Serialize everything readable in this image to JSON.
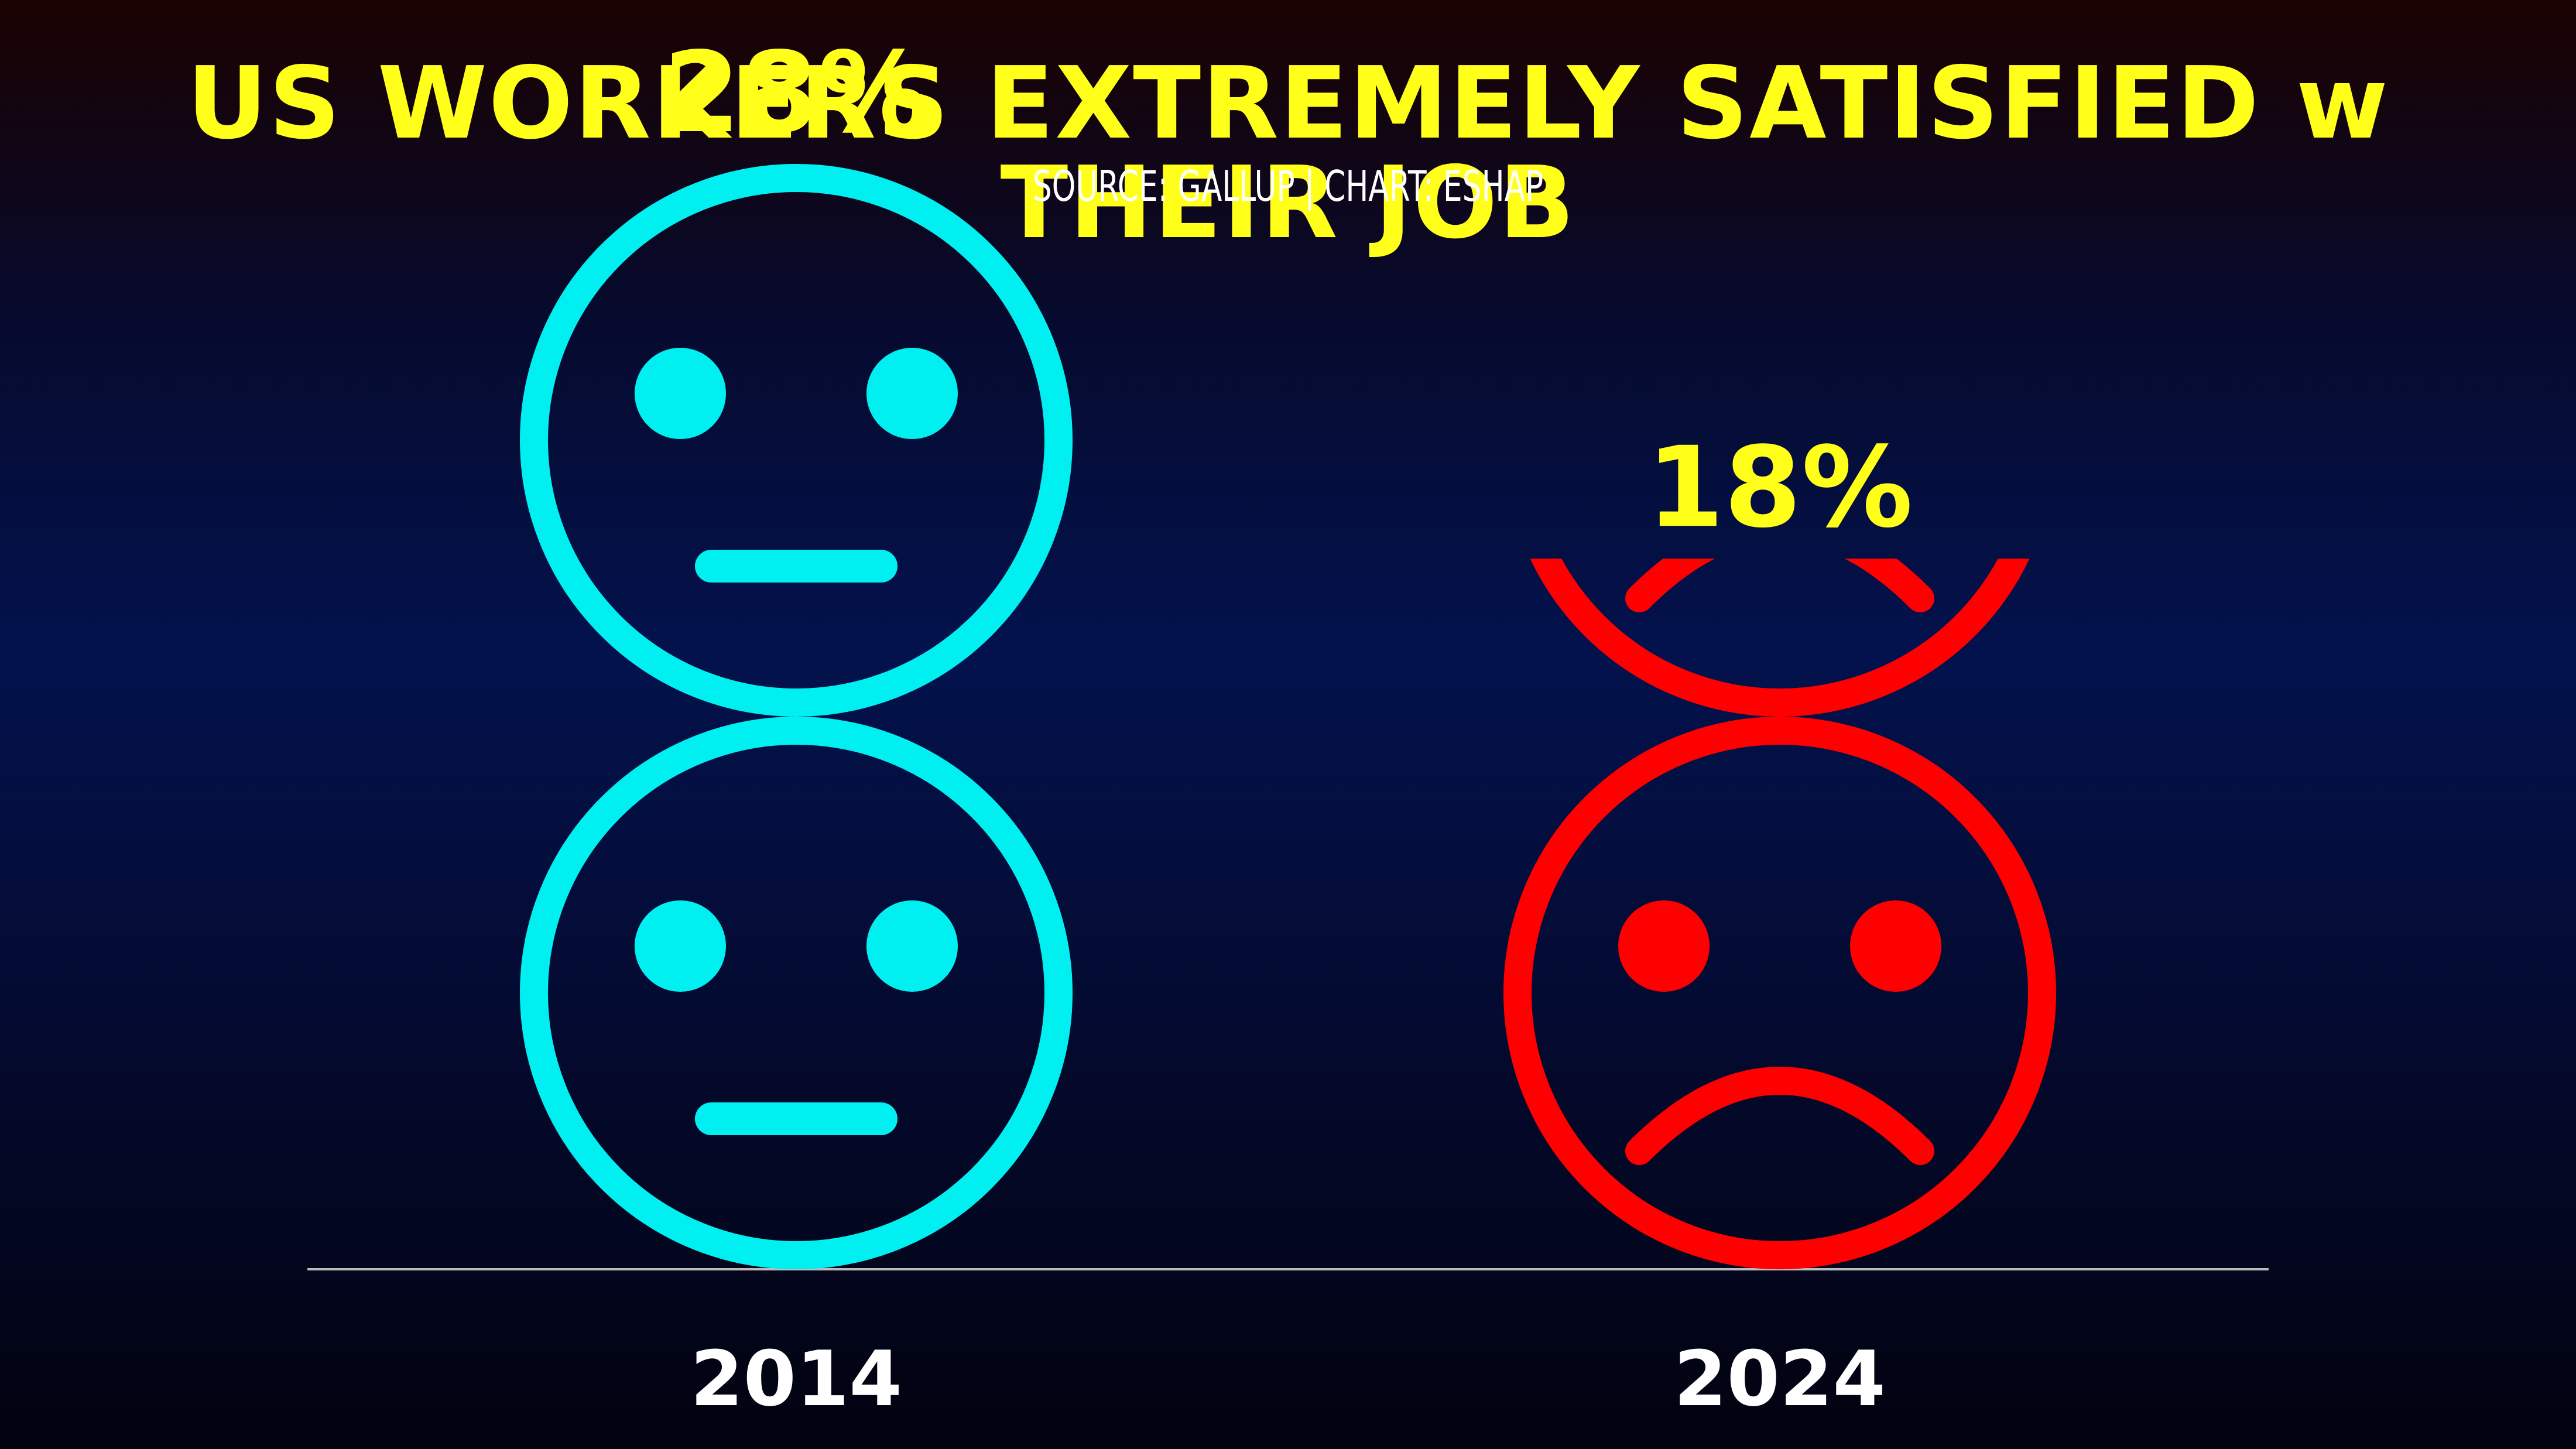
{
  "title": "US WORKERS EXTREMELY SATISFIED w THEIR JOB",
  "subtitle": "SOURCE: GALLUP | CHART: ESHAP",
  "colors": {
    "title": "#ffff1a",
    "subtitle": "#ffffff",
    "value_label": "#ffff1a",
    "category_label": "#ffffff",
    "baseline": "#bbbbbb",
    "neutral_face": "#00f0f2",
    "sad_face": "#ff0000"
  },
  "chart_data": {
    "type": "bar",
    "style": "pictogram",
    "units_per_icon": 14,
    "categories": [
      "2014",
      "2024"
    ],
    "values": [
      28,
      18
    ],
    "value_labels": [
      "28%",
      "18%"
    ],
    "icons": [
      "neutral-face-icon",
      "sad-face-icon"
    ],
    "ylim": [
      0,
      30
    ],
    "grid": false,
    "legend": "none",
    "title": "US WORKERS EXTREMELY SATISFIED w THEIR JOB",
    "xlabel": "",
    "ylabel": ""
  }
}
